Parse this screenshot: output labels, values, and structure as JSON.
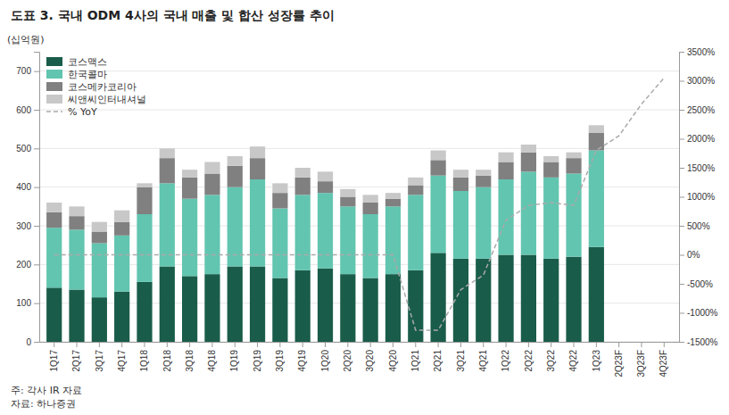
{
  "chart_data": {
    "type": "bar",
    "stacked": true,
    "title": "도표 3. 국내 ODM 4사의 국내 매출 및 합산 성장률 추이",
    "ylabel": "(십억원)",
    "annotations": [
      "주: 각사 IR 자료",
      "자료: 하나증권"
    ],
    "categories": [
      "1Q17",
      "2Q17",
      "3Q17",
      "4Q17",
      "1Q18",
      "2Q18",
      "3Q18",
      "4Q18",
      "1Q19",
      "2Q19",
      "3Q19",
      "4Q19",
      "1Q20",
      "2Q20",
      "3Q20",
      "4Q20",
      "1Q21",
      "2Q21",
      "3Q21",
      "4Q21",
      "1Q22",
      "2Q22",
      "3Q22",
      "4Q22",
      "1Q23",
      "2Q23F",
      "3Q23F",
      "4Q23F"
    ],
    "series": [
      {
        "name": "코스맥스",
        "color": "#1a5c4a",
        "type": "bar",
        "values": [
          140,
          135,
          115,
          130,
          155,
          195,
          170,
          175,
          195,
          195,
          165,
          185,
          190,
          175,
          165,
          175,
          185,
          230,
          215,
          215,
          225,
          225,
          215,
          220,
          245,
          0,
          0,
          0
        ]
      },
      {
        "name": "한국콜마",
        "color": "#62c5b0",
        "type": "bar",
        "values": [
          155,
          155,
          140,
          145,
          175,
          215,
          200,
          205,
          205,
          225,
          180,
          195,
          195,
          175,
          165,
          175,
          195,
          200,
          175,
          185,
          195,
          215,
          210,
          215,
          250,
          0,
          0,
          0
        ]
      },
      {
        "name": "코스메카코리아",
        "color": "#808080",
        "type": "bar",
        "values": [
          40,
          35,
          30,
          35,
          70,
          65,
          55,
          55,
          55,
          55,
          40,
          45,
          30,
          25,
          30,
          20,
          25,
          40,
          35,
          30,
          45,
          50,
          40,
          40,
          45,
          0,
          0,
          0
        ]
      },
      {
        "name": "씨앤씨인터내셔널",
        "color": "#c8c8c8",
        "type": "bar",
        "values": [
          25,
          25,
          25,
          30,
          10,
          25,
          20,
          30,
          25,
          30,
          25,
          25,
          25,
          20,
          20,
          15,
          20,
          25,
          20,
          15,
          25,
          20,
          15,
          15,
          20,
          0,
          0,
          0
        ]
      },
      {
        "name": "% YoY",
        "color": "#aaaaaa",
        "type": "line",
        "axis": "y2",
        "line_style": "dashed",
        "values": [
          0,
          0,
          0,
          0,
          0,
          0,
          0,
          0,
          0,
          0,
          0,
          0,
          0,
          0,
          0,
          0,
          -1300,
          -1300,
          -600,
          -350,
          600,
          850,
          900,
          850,
          1800,
          2050,
          2600,
          3050
        ]
      }
    ],
    "ylim": [
      0,
      750
    ],
    "yticks": [
      0,
      100,
      200,
      300,
      400,
      500,
      600,
      700
    ],
    "y2lim": [
      -1500,
      3500
    ],
    "y2ticks": [
      {
        "value": -1500,
        "label": "-1500%"
      },
      {
        "value": -1000,
        "label": "-1000%"
      },
      {
        "value": -500,
        "label": "-500%"
      },
      {
        "value": 0,
        "label": "0%"
      },
      {
        "value": 500,
        "label": "500%"
      },
      {
        "value": 1000,
        "label": "1000%"
      },
      {
        "value": 1500,
        "label": "1500%"
      },
      {
        "value": 2000,
        "label": "2000%"
      },
      {
        "value": 2500,
        "label": "2500%"
      },
      {
        "value": 3000,
        "label": "3000%"
      },
      {
        "value": 3500,
        "label": "3500%"
      }
    ],
    "grid": true,
    "legend": "upper left"
  }
}
